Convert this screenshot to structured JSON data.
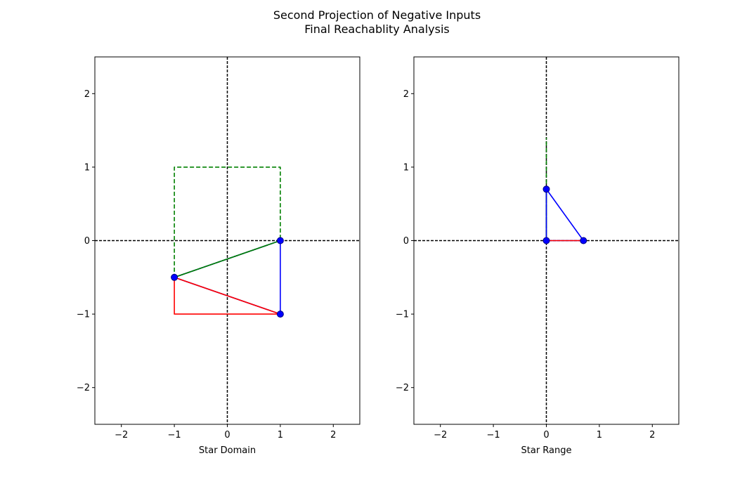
{
  "figure": {
    "title_line1": "Second Projection of Negative Inputs",
    "title_line2": "Final Reachablity Analysis"
  },
  "colors": {
    "input_box": "#008000",
    "star": "#0000ff",
    "output": "#ff0000",
    "axis_lines": "#000000",
    "vertex_fill": "#0000ff"
  },
  "chart_data": [
    {
      "type": "line",
      "xlabel": "Star Domain",
      "ylabel": "",
      "xlim": [
        -2.5,
        2.5
      ],
      "ylim": [
        -2.5,
        2.5
      ],
      "xticks": [
        -2,
        -1,
        0,
        1,
        2
      ],
      "yticks": [
        -2,
        -1,
        0,
        1,
        2
      ],
      "xtick_labels": [
        "−2",
        "−1",
        "0",
        "1",
        "2"
      ],
      "ytick_labels": [
        "−2",
        "−1",
        "0",
        "1",
        "2"
      ],
      "zero_lines": true,
      "grid": false,
      "series": [
        {
          "style": "dashed",
          "color": "#008000",
          "x": [
            -1,
            1,
            1,
            -1,
            -1
          ],
          "y": [
            -0.5,
            0,
            1,
            1,
            -0.5
          ]
        },
        {
          "style": "solid",
          "color": "#0000ff",
          "x": [
            -1,
            1,
            1,
            -1
          ],
          "y": [
            -0.5,
            0,
            -1,
            -0.5
          ]
        },
        {
          "style": "solid",
          "color": "#ff0000",
          "x": [
            -1,
            1,
            -1,
            -1
          ],
          "y": [
            -0.5,
            -1,
            -1,
            -0.5
          ]
        },
        {
          "style": "solid",
          "color": "#008000",
          "x": [
            -1,
            1
          ],
          "y": [
            -0.5,
            0
          ]
        }
      ],
      "vertices": [
        {
          "x": -1,
          "y": -0.5
        },
        {
          "x": 1,
          "y": 0
        },
        {
          "x": 1,
          "y": -1
        }
      ]
    },
    {
      "type": "line",
      "xlabel": "Star Range",
      "ylabel": "",
      "xlim": [
        -2.5,
        2.5
      ],
      "ylim": [
        -2.5,
        2.5
      ],
      "xticks": [
        -2,
        -1,
        0,
        1,
        2
      ],
      "yticks": [
        -2,
        -1,
        0,
        1,
        2
      ],
      "xtick_labels": [
        "−2",
        "−1",
        "0",
        "1",
        "2"
      ],
      "ytick_labels": [
        "−2",
        "−1",
        "0",
        "1",
        "2"
      ],
      "zero_lines": true,
      "grid": false,
      "series": [
        {
          "style": "dashed",
          "color": "#008000",
          "x": [
            0,
            0
          ],
          "y": [
            0,
            1.4
          ]
        },
        {
          "style": "solid",
          "color": "#008000",
          "x": [
            0,
            0
          ],
          "y": [
            0,
            0.7
          ]
        },
        {
          "style": "solid",
          "color": "#0000ff",
          "x": [
            0,
            0.7,
            0,
            0
          ],
          "y": [
            0.7,
            0,
            0,
            0.7
          ]
        },
        {
          "style": "solid",
          "color": "#ff0000",
          "x": [
            0,
            0.7
          ],
          "y": [
            0,
            0
          ]
        }
      ],
      "vertices": [
        {
          "x": 0,
          "y": 0.7
        },
        {
          "x": 0,
          "y": 0
        },
        {
          "x": 0.7,
          "y": 0
        }
      ]
    }
  ]
}
